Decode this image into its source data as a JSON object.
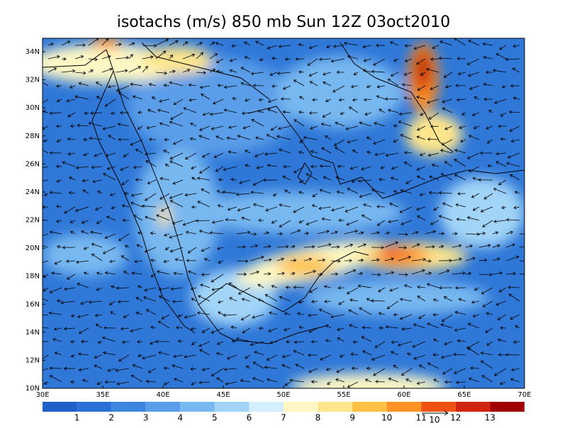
{
  "title": "isotachs (m/s) 850 mb Sun 12Z 03oct2010",
  "lat_labels": [
    "34N",
    "32N",
    "30N",
    "28N",
    "26N",
    "24N",
    "22N",
    "20N",
    "18N",
    "16N",
    "14N",
    "12N",
    "10N"
  ],
  "lon_labels": [
    "30E",
    "35E",
    "40E",
    "45E",
    "50E",
    "55E",
    "60E",
    "65E",
    "70E"
  ],
  "colorbar": {
    "labels": [
      "1",
      "2",
      "3",
      "4",
      "5",
      "6",
      "7",
      "8",
      "9",
      "10",
      "11",
      "12",
      "13"
    ],
    "colors": [
      "#1f5fc8",
      "#2a70d6",
      "#3c86e0",
      "#5a9de8",
      "#78b8f0",
      "#a2d4f8",
      "#d4f0ff",
      "#fff8c4",
      "#ffe68c",
      "#ffc044",
      "#ff9224",
      "#f05212",
      "#d02410",
      "#a00000"
    ]
  },
  "reference_vector": "10"
}
